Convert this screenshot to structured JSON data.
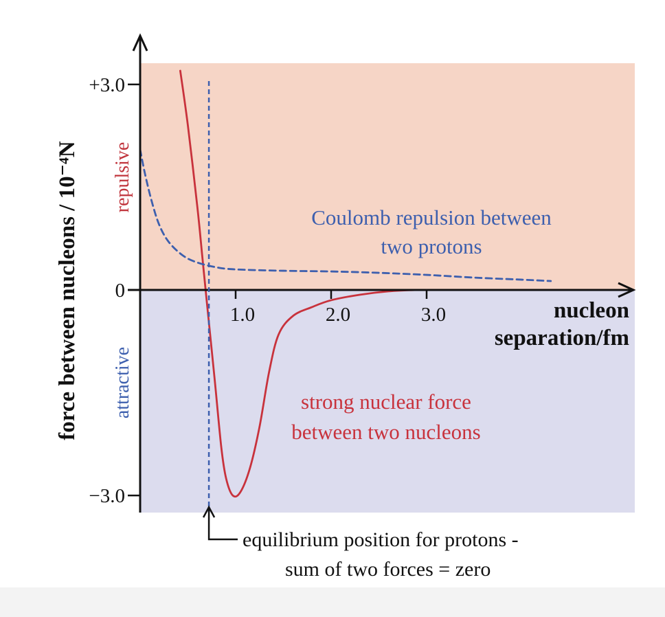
{
  "chart_data": {
    "type": "line",
    "ylabel": "force between nucleons / 10⁻⁴N",
    "xlabel_lines": [
      "nucleon",
      "separation/fm"
    ],
    "xlim": [
      0,
      5.3
    ],
    "ylim": [
      -3.3,
      3.3
    ],
    "x_ticks": [
      {
        "value": 1.0,
        "label": "1.0"
      },
      {
        "value": 2.0,
        "label": "2.0"
      },
      {
        "value": 3.0,
        "label": "3.0"
      }
    ],
    "y_ticks": [
      {
        "value": 3.0,
        "label": "+3.0"
      },
      {
        "value": 0,
        "label": "0"
      },
      {
        "value": -3.0,
        "label": "−3.0"
      }
    ],
    "regions": {
      "repulsive": {
        "label": "repulsive",
        "color": "#f6d5c6",
        "text_color": "#c0343c"
      },
      "attractive": {
        "label": "attractive",
        "color": "#dcdcee",
        "text_color": "#3d5fae"
      }
    },
    "series": [
      {
        "key": "strong",
        "label_lines": [
          "strong nuclear force",
          "between two nucleons"
        ],
        "color": "#c8323c",
        "style": "solid",
        "points": [
          [
            0.42,
            3.2
          ],
          [
            0.5,
            2.4
          ],
          [
            0.6,
            1.2
          ],
          [
            0.65,
            0.5
          ],
          [
            0.7,
            -0.2
          ],
          [
            0.78,
            -1.3
          ],
          [
            0.85,
            -2.3
          ],
          [
            0.9,
            -2.75
          ],
          [
            0.97,
            -3.0
          ],
          [
            1.05,
            -2.95
          ],
          [
            1.15,
            -2.6
          ],
          [
            1.25,
            -2.0
          ],
          [
            1.35,
            -1.2
          ],
          [
            1.45,
            -0.65
          ],
          [
            1.6,
            -0.38
          ],
          [
            1.8,
            -0.25
          ],
          [
            2.0,
            -0.15
          ],
          [
            2.3,
            -0.07
          ],
          [
            2.6,
            -0.02
          ],
          [
            2.9,
            0.0
          ],
          [
            3.1,
            0.0
          ]
        ]
      },
      {
        "key": "coulomb",
        "label_lines": [
          "Coulomb repulsion between",
          "two protons"
        ],
        "color": "#3d5fae",
        "style": "dashed",
        "points": [
          [
            0.0,
            2.05
          ],
          [
            0.05,
            1.7
          ],
          [
            0.12,
            1.3
          ],
          [
            0.2,
            0.95
          ],
          [
            0.3,
            0.7
          ],
          [
            0.45,
            0.5
          ],
          [
            0.6,
            0.4
          ],
          [
            0.8,
            0.33
          ],
          [
            1.0,
            0.3
          ],
          [
            1.5,
            0.28
          ],
          [
            2.0,
            0.27
          ],
          [
            2.5,
            0.25
          ],
          [
            3.0,
            0.22
          ],
          [
            3.5,
            0.18
          ],
          [
            4.0,
            0.15
          ],
          [
            4.3,
            0.13
          ]
        ]
      }
    ],
    "equilibrium": {
      "x": 0.72,
      "label_lines": [
        "equilibrium position for protons -",
        "sum of two forces = zero"
      ],
      "color": "#3d5fae"
    }
  }
}
